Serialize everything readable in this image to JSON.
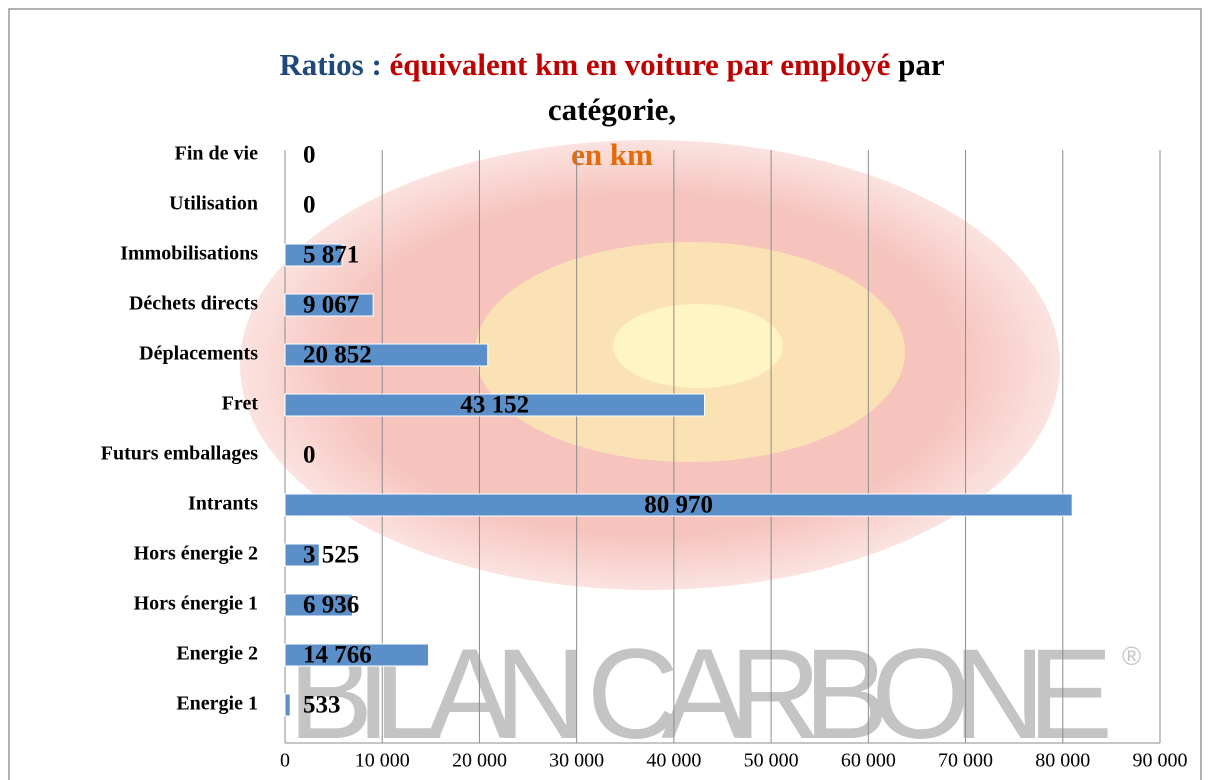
{
  "chart_data": {
    "type": "bar",
    "orientation": "horizontal",
    "title_lines": [
      [
        {
          "text": "Ratios : ",
          "color": "#1f497d"
        },
        {
          "text": "équivalent km en voiture par employé",
          "color": "#c00000"
        },
        {
          "text": " par",
          "color": "#000000"
        }
      ],
      [
        {
          "text": "catégorie,",
          "color": "#000000"
        }
      ],
      [
        {
          "text": "en km",
          "color": "#e36c09"
        }
      ]
    ],
    "watermark": "BILAN CARBONE",
    "watermark_mark": "®",
    "categories": [
      "Fin de vie",
      "Utilisation",
      "Immobilisations",
      "Déchets directs",
      "Déplacements",
      "Fret",
      "Futurs emballages",
      "Intrants",
      "Hors énergie 2",
      "Hors énergie 1",
      "Energie 2",
      "Energie 1"
    ],
    "values": [
      0,
      0,
      5871,
      9067,
      20852,
      43152,
      0,
      80970,
      3525,
      6936,
      14766,
      533
    ],
    "value_labels": [
      "0",
      "0",
      "5 871",
      "9 067",
      "20 852",
      "43 152",
      "0",
      "80 970",
      "3 525",
      "6 936",
      "14 766",
      "533"
    ],
    "color": "#5b8fc9",
    "xlim": [
      0,
      90000
    ],
    "xticks": [
      0,
      {
        "value": 10000,
        "label": "10 000"
      },
      {
        "value": 20000,
        "label": "20 000"
      },
      {
        "value": 30000,
        "label": "30 000"
      },
      {
        "value": 40000,
        "label": "40 000"
      },
      {
        "value": 50000,
        "label": "50 000"
      },
      {
        "value": 60000,
        "label": "60 000"
      },
      {
        "value": 70000,
        "label": "70 000"
      },
      {
        "value": 80000,
        "label": "80 000"
      },
      {
        "value": 90000,
        "label": "90 000"
      }
    ],
    "grid": true
  }
}
